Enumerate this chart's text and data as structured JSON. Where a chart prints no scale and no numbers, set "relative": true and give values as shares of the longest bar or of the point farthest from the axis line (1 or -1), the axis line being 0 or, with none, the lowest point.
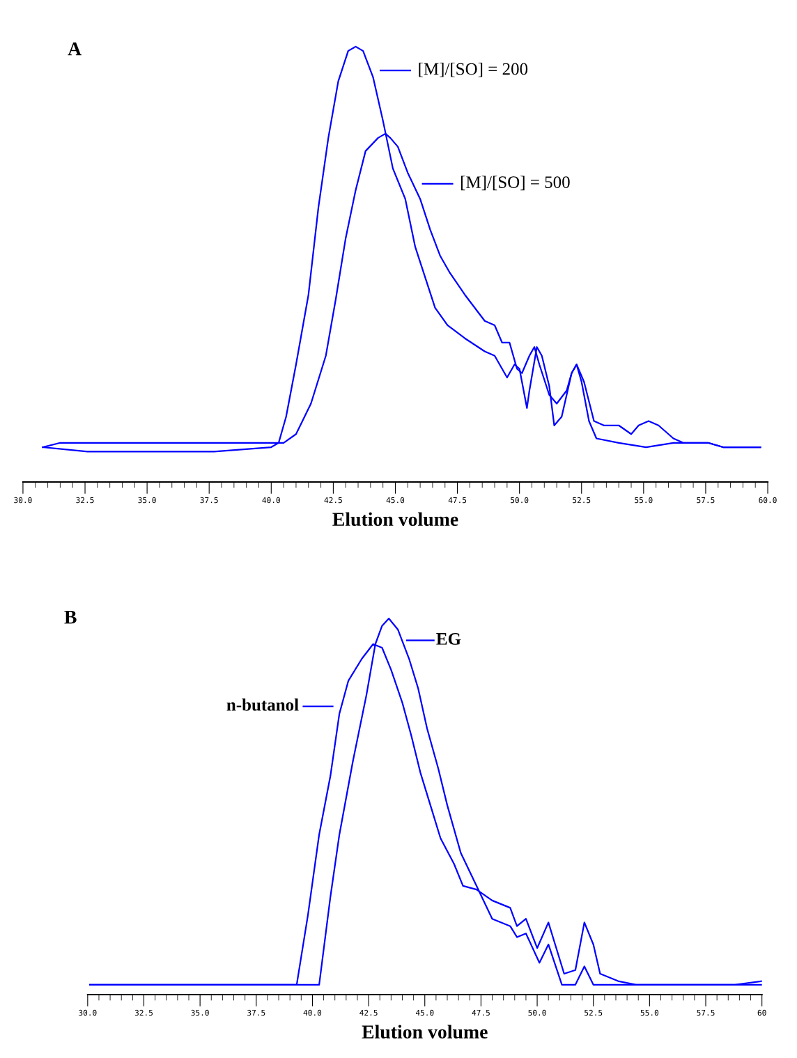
{
  "chart_data": [
    {
      "type": "line",
      "title": "A",
      "xlabel": "Elution volume",
      "relative": true,
      "grid": false,
      "legend": "top",
      "line_style": "solid",
      "marker": "none",
      "xlim": [
        30,
        60
      ],
      "xticks": [
        {
          "value": 30,
          "label": "30.0"
        },
        {
          "value": 32.5,
          "label": "32.5"
        },
        {
          "value": 35,
          "label": "35.0"
        },
        {
          "value": 37.5,
          "label": "37.5"
        },
        {
          "value": 40,
          "label": "40.0"
        },
        {
          "value": 42.5,
          "label": "42.5"
        },
        {
          "value": 45,
          "label": "45.0"
        },
        {
          "value": 47.5,
          "label": "47.5"
        },
        {
          "value": 50,
          "label": "50.0"
        },
        {
          "value": 52.5,
          "label": "52.5"
        },
        {
          "value": 55,
          "label": "55.0"
        },
        {
          "value": 57.5,
          "label": "57.5"
        },
        {
          "value": 60,
          "label": "60.0"
        }
      ],
      "series": [
        {
          "name": "[M]/[SO] = 200",
          "color": "#0000ff",
          "x": [
            30.8,
            32.6,
            34.9,
            37.7,
            40.0,
            40.3,
            40.6,
            41.0,
            41.5,
            41.9,
            42.3,
            42.7,
            43.1,
            43.4,
            43.7,
            44.1,
            44.5,
            44.9,
            45.4,
            45.8,
            46.2,
            46.6,
            47.1,
            47.8,
            48.6,
            49.0,
            49.3,
            49.5,
            49.8,
            50.0,
            50.3,
            50.4,
            50.7,
            50.9,
            51.2,
            51.4,
            51.7,
            52.1,
            52.3,
            52.5,
            52.8,
            53.1,
            54.0,
            55.1,
            56.2,
            57.1,
            57.6,
            58.2,
            58.7,
            59.7
          ],
          "values": [
            0.08,
            0.07,
            0.07,
            0.07,
            0.08,
            0.09,
            0.15,
            0.27,
            0.43,
            0.63,
            0.79,
            0.92,
            0.99,
            1.0,
            0.99,
            0.93,
            0.83,
            0.72,
            0.65,
            0.54,
            0.47,
            0.4,
            0.36,
            0.33,
            0.3,
            0.29,
            0.26,
            0.24,
            0.27,
            0.26,
            0.17,
            0.21,
            0.31,
            0.29,
            0.22,
            0.13,
            0.15,
            0.25,
            0.27,
            0.23,
            0.14,
            0.1,
            0.09,
            0.08,
            0.09,
            0.09,
            0.09,
            0.08,
            0.08,
            0.08
          ]
        },
        {
          "name": "[M]/[SO] = 500",
          "color": "#0000ff",
          "x": [
            30.8,
            31.5,
            32.3,
            33.7,
            34.9,
            36.5,
            38.5,
            40.0,
            40.5,
            41.0,
            41.6,
            42.2,
            42.6,
            43.0,
            43.4,
            43.8,
            44.3,
            44.6,
            44.8,
            45.1,
            45.5,
            46.0,
            46.4,
            46.8,
            47.2,
            47.8,
            48.6,
            49.0,
            49.3,
            49.6,
            49.9,
            50.1,
            50.4,
            50.6,
            50.8,
            51.2,
            51.5,
            51.9,
            52.1,
            52.3,
            52.6,
            53.0,
            53.4,
            54.0,
            54.5,
            54.8,
            55.2,
            55.6,
            56.2,
            56.6,
            57.1,
            57.6,
            58.2,
            59.0,
            59.7
          ],
          "values": [
            0.08,
            0.09,
            0.09,
            0.09,
            0.09,
            0.09,
            0.09,
            0.09,
            0.09,
            0.11,
            0.18,
            0.29,
            0.42,
            0.56,
            0.67,
            0.76,
            0.79,
            0.8,
            0.79,
            0.77,
            0.71,
            0.65,
            0.58,
            0.52,
            0.48,
            0.43,
            0.37,
            0.36,
            0.32,
            0.32,
            0.26,
            0.25,
            0.29,
            0.31,
            0.27,
            0.2,
            0.18,
            0.21,
            0.25,
            0.27,
            0.23,
            0.14,
            0.13,
            0.13,
            0.11,
            0.13,
            0.14,
            0.13,
            0.1,
            0.09,
            0.09,
            0.09,
            0.08,
            0.08,
            0.08
          ]
        }
      ]
    },
    {
      "type": "line",
      "title": "B",
      "xlabel": "Elution volume",
      "relative": true,
      "grid": false,
      "legend": "top",
      "line_style": "solid",
      "marker": "none",
      "xlim": [
        30,
        60
      ],
      "xticks": [
        {
          "value": 30,
          "label": "30.0"
        },
        {
          "value": 32.5,
          "label": "32.5"
        },
        {
          "value": 35,
          "label": "35.0"
        },
        {
          "value": 37.5,
          "label": "37.5"
        },
        {
          "value": 40,
          "label": "40.0"
        },
        {
          "value": 42.5,
          "label": "42.5"
        },
        {
          "value": 45,
          "label": "45.0"
        },
        {
          "value": 47.5,
          "label": "47.5"
        },
        {
          "value": 50,
          "label": "50.0"
        },
        {
          "value": 52.5,
          "label": "52.5"
        },
        {
          "value": 55,
          "label": "55.0"
        },
        {
          "value": 57.5,
          "label": "57.5"
        },
        {
          "value": 60,
          "label": "60"
        }
      ],
      "series": [
        {
          "name": "EG",
          "color": "#0000ff",
          "x": [
            30.1,
            35.3,
            40.3,
            40.8,
            41.2,
            41.8,
            42.4,
            42.8,
            43.1,
            43.4,
            43.8,
            44.3,
            44.7,
            45.1,
            45.6,
            46.0,
            46.6,
            47.3,
            48.0,
            48.8,
            49.1,
            49.5,
            50.1,
            50.5,
            51.1,
            51.7,
            52.1,
            52.5,
            60.0
          ],
          "values": [
            0,
            0,
            0,
            0.24,
            0.41,
            0.61,
            0.79,
            0.93,
            0.98,
            1.0,
            0.97,
            0.89,
            0.81,
            0.7,
            0.59,
            0.49,
            0.36,
            0.27,
            0.18,
            0.16,
            0.13,
            0.14,
            0.06,
            0.11,
            0,
            0,
            0.05,
            0,
            0
          ]
        },
        {
          "name": "n-butanol",
          "color": "#0000ff",
          "x": [
            30.1,
            35.3,
            39.3,
            39.8,
            40.3,
            40.8,
            41.2,
            41.6,
            42.2,
            42.7,
            43.1,
            43.5,
            44.0,
            44.4,
            44.8,
            45.3,
            45.7,
            46.3,
            46.7,
            47.3,
            48.0,
            48.8,
            49.1,
            49.5,
            50.0,
            50.5,
            50.8,
            51.2,
            51.7,
            52.1,
            52.5,
            52.8,
            53.6,
            54.4,
            57.3,
            58.8,
            60.0
          ],
          "values": [
            0,
            0,
            0,
            0.19,
            0.41,
            0.57,
            0.74,
            0.83,
            0.89,
            0.93,
            0.92,
            0.86,
            0.77,
            0.68,
            0.58,
            0.48,
            0.4,
            0.33,
            0.27,
            0.26,
            0.23,
            0.21,
            0.16,
            0.18,
            0.1,
            0.17,
            0.11,
            0.03,
            0.04,
            0.17,
            0.11,
            0.03,
            0.01,
            0,
            0,
            0,
            0.01
          ]
        }
      ]
    }
  ]
}
